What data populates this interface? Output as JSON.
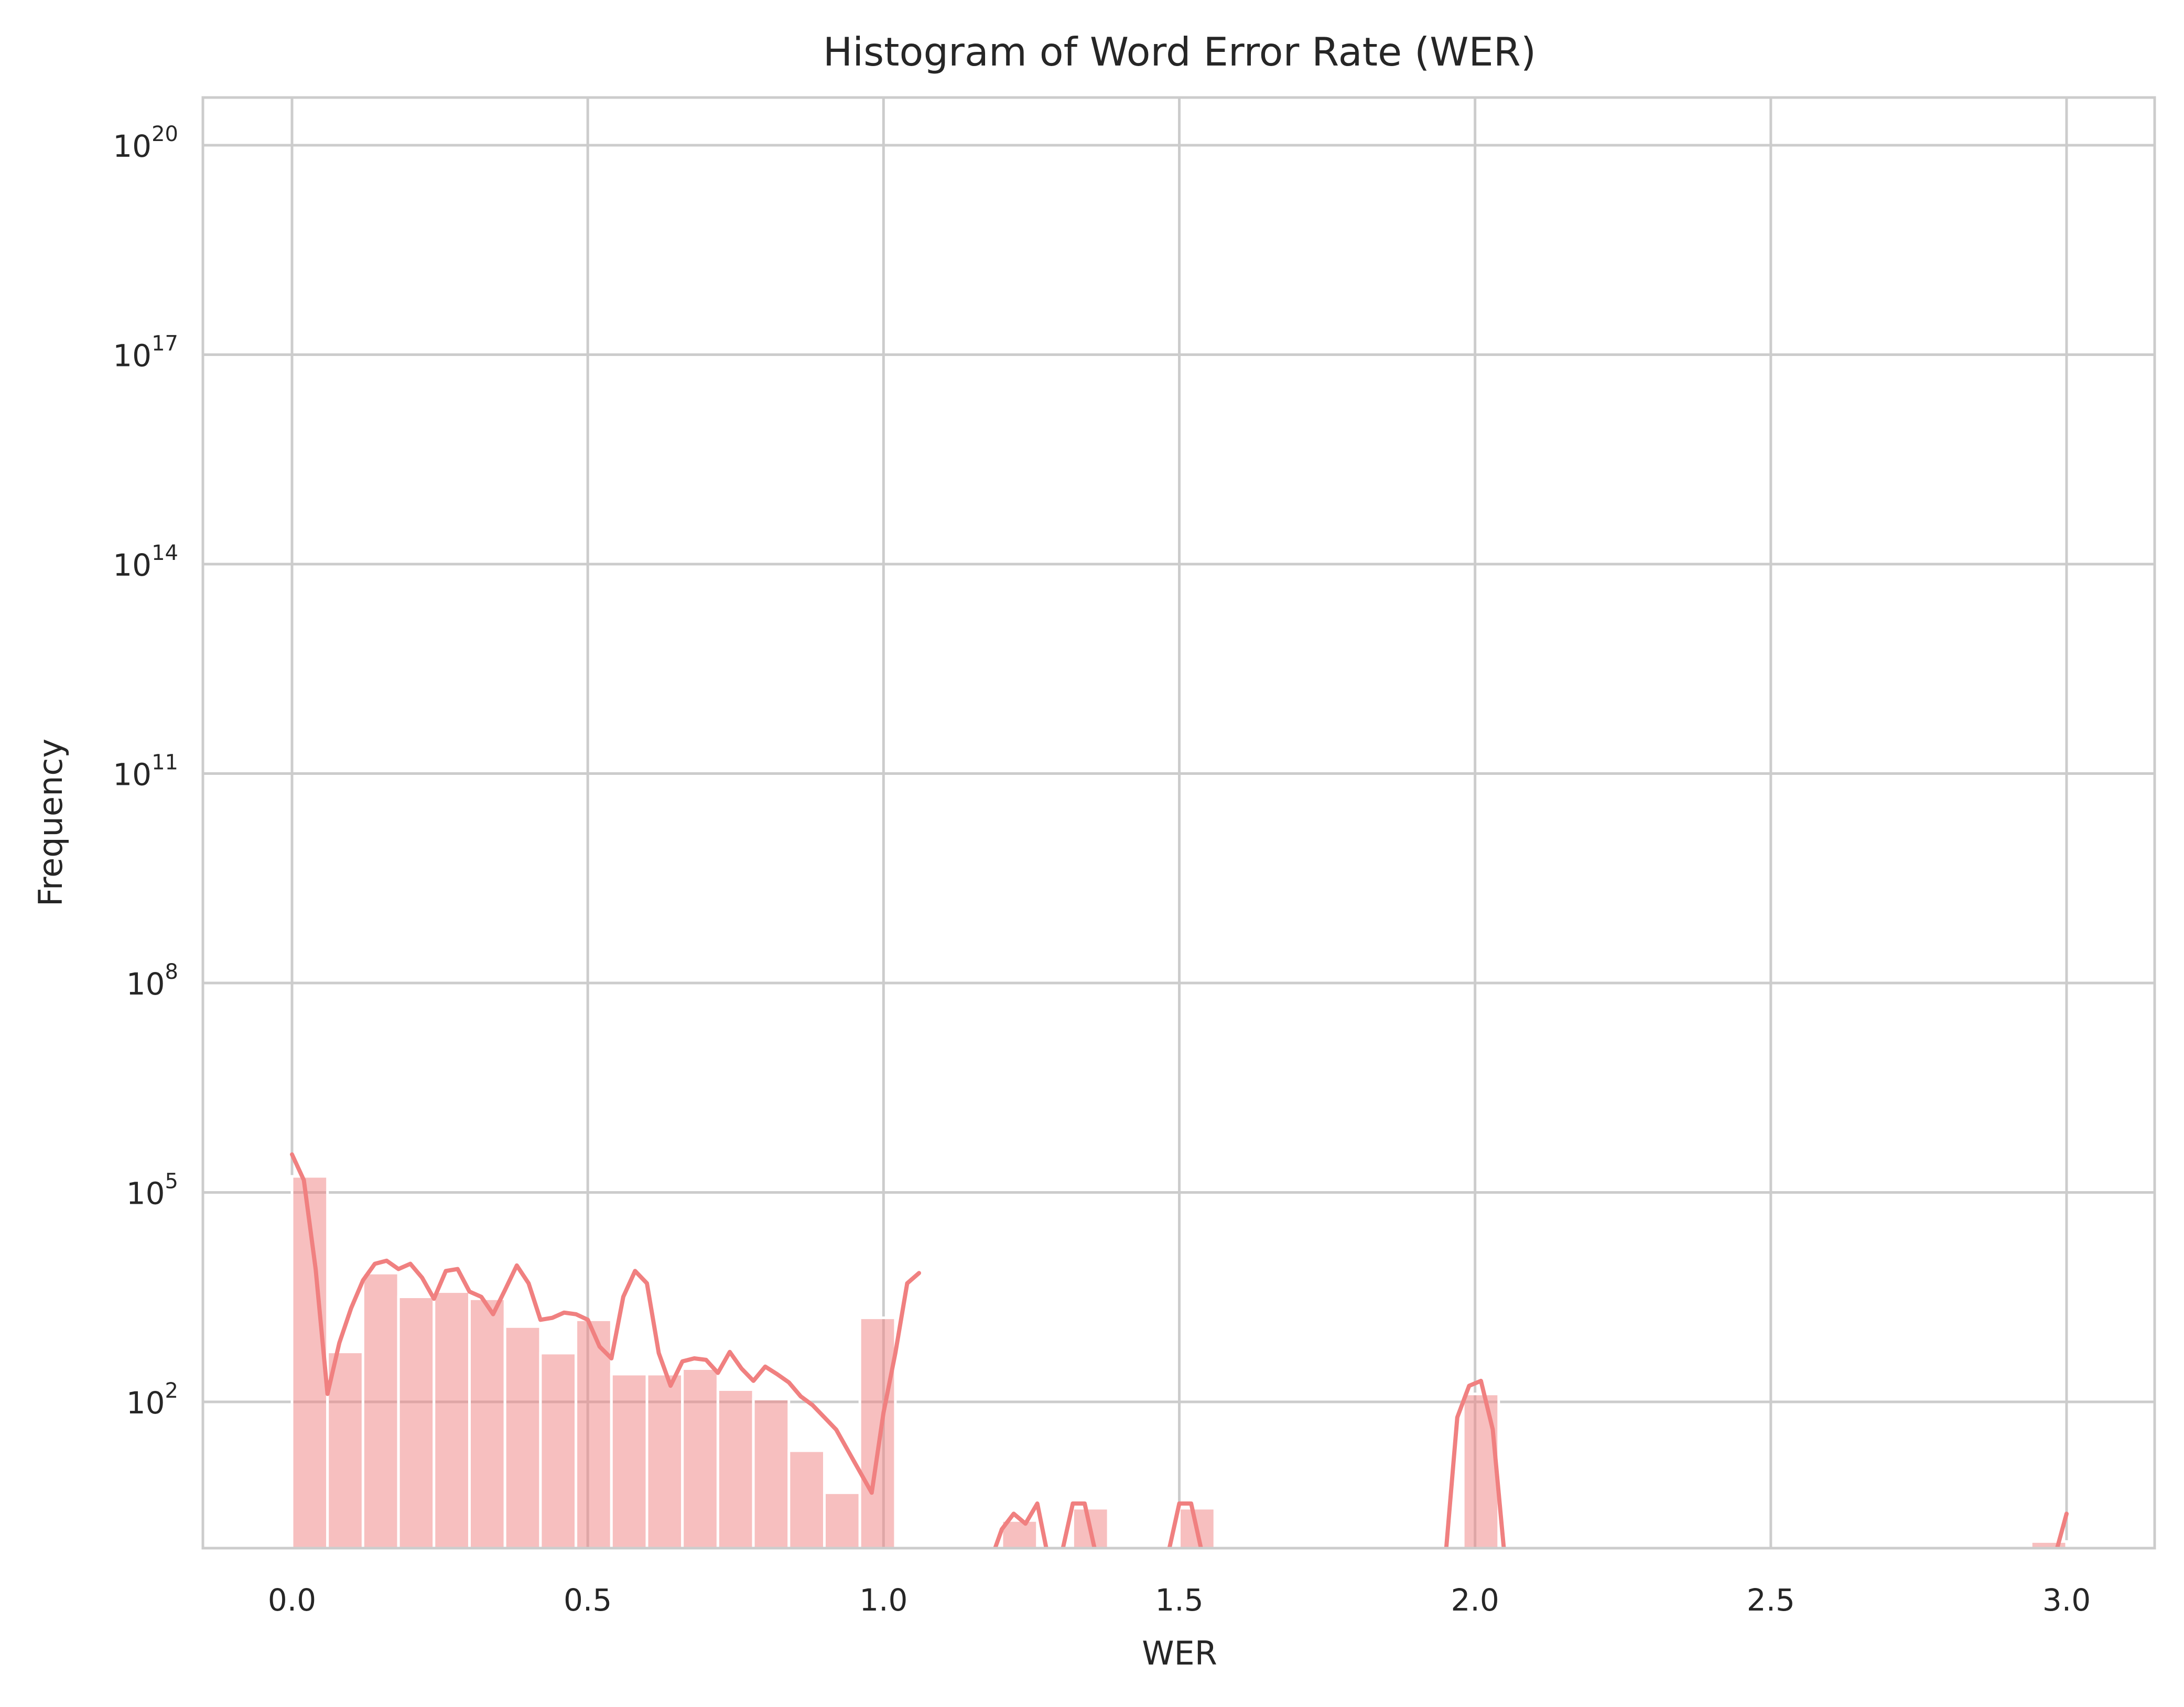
{
  "chart_data": {
    "type": "bar",
    "title": "Histogram of Word Error Rate (WER)",
    "xlabel": "WER",
    "ylabel": "Frequency",
    "x_scale": "linear",
    "y_scale": "log",
    "xlim": [
      -0.15,
      3.15
    ],
    "ylim_exponent": [
      -1.3,
      21.4
    ],
    "x_ticks": [
      {
        "value": 0.0,
        "label": "0.0"
      },
      {
        "value": 0.5,
        "label": "0.5"
      },
      {
        "value": 1.0,
        "label": "1.0"
      },
      {
        "value": 1.5,
        "label": "1.5"
      },
      {
        "value": 2.0,
        "label": "2.0"
      },
      {
        "value": 2.5,
        "label": "2.5"
      },
      {
        "value": 3.0,
        "label": "3.0"
      }
    ],
    "y_ticks": [
      {
        "exponent": 2,
        "base": "10",
        "sup": "2"
      },
      {
        "exponent": 5,
        "base": "10",
        "sup": "5"
      },
      {
        "exponent": 8,
        "base": "10",
        "sup": "8"
      },
      {
        "exponent": 11,
        "base": "10",
        "sup": "11"
      },
      {
        "exponent": 14,
        "base": "10",
        "sup": "14"
      },
      {
        "exponent": 17,
        "base": "10",
        "sup": "17"
      },
      {
        "exponent": 20,
        "base": "10",
        "sup": "20"
      }
    ],
    "grid": true,
    "legend": "none",
    "bin_width": 0.06,
    "bin_starts": [
      0.0,
      0.06,
      0.12,
      0.18,
      0.24,
      0.3,
      0.36,
      0.42,
      0.48,
      0.54,
      0.6,
      0.66,
      0.72,
      0.78,
      0.84,
      0.9,
      0.96,
      1.2,
      1.32,
      1.5,
      1.98,
      2.94
    ],
    "bin_counts": [
      170000,
      520,
      7000,
      3200,
      3800,
      3000,
      1200,
      500,
      1500,
      250,
      250,
      300,
      150,
      110,
      20,
      5,
      1600,
      2,
      3,
      3,
      130,
      1
    ],
    "kde": {
      "x": [
        0.0,
        0.02,
        0.04,
        0.06,
        0.08,
        0.1,
        0.12,
        0.14,
        0.16,
        0.18,
        0.2,
        0.22,
        0.24,
        0.26,
        0.28,
        0.3,
        0.32,
        0.34,
        0.36,
        0.38,
        0.4,
        0.42,
        0.44,
        0.46,
        0.48,
        0.5,
        0.52,
        0.54,
        0.56,
        0.58,
        0.6,
        0.62,
        0.64,
        0.66,
        0.68,
        0.7,
        0.72,
        0.74,
        0.76,
        0.78,
        0.8,
        0.82,
        0.84,
        0.86,
        0.88,
        0.9,
        0.92,
        0.94,
        0.96,
        0.98,
        1.0,
        1.02,
        1.04,
        1.06
      ],
      "y": [
        350000,
        180000,
        10000,
        130,
        800,
        2500,
        6000,
        9000,
        10500,
        8000,
        9000,
        6000,
        3000,
        6500,
        7000,
        3800,
        3200,
        1900,
        4500,
        8000,
        4500,
        1400,
        1500,
        1800,
        1700,
        1400,
        600,
        400,
        3000,
        7000,
        4500,
        500,
        180,
        400,
        420,
        400,
        250,
        500,
        300,
        200,
        330,
        260,
        200,
        130,
        100,
        65,
        40,
        20,
        10,
        6,
        60,
        500,
        4000,
        7000
      ],
      "segments": [
        {
          "x": [
            0.0,
            0.02,
            0.04,
            0.06,
            0.08,
            0.1,
            0.12,
            0.14,
            0.16,
            0.18,
            0.2,
            0.22,
            0.24,
            0.26,
            0.28,
            0.3,
            0.32,
            0.34,
            0.36,
            0.38,
            0.4,
            0.42,
            0.44,
            0.46,
            0.48,
            0.5,
            0.52,
            0.54,
            0.56,
            0.58,
            0.6,
            0.62,
            0.64,
            0.66,
            0.68,
            0.7,
            0.72,
            0.74,
            0.76,
            0.78,
            0.8,
            0.82,
            0.84,
            0.86,
            0.88,
            0.9,
            0.92,
            0.94,
            0.96,
            0.98,
            1.0,
            1.02,
            1.04,
            1.06
          ],
          "y": [
            350000,
            150000,
            8000,
            130,
            700,
            2200,
            5500,
            9500,
            10500,
            8000,
            9500,
            6000,
            3000,
            7500,
            8000,
            3800,
            3200,
            1800,
            4000,
            9000,
            5000,
            1500,
            1600,
            1900,
            1800,
            1500,
            620,
            420,
            3200,
            7500,
            5000,
            500,
            170,
            380,
            420,
            400,
            260,
            520,
            300,
            200,
            320,
            250,
            190,
            120,
            90,
            60,
            40,
            20,
            10,
            5,
            70,
            500,
            5000,
            7000
          ]
        }
      ]
    }
  }
}
